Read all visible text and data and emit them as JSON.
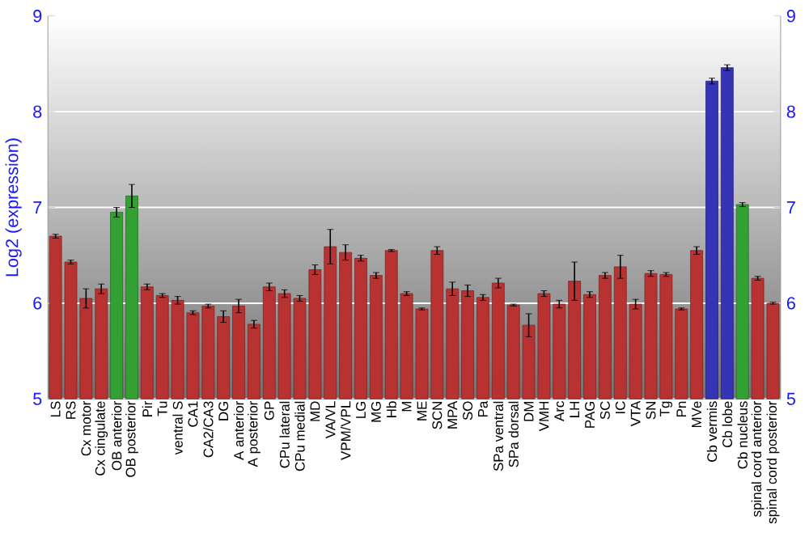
{
  "chart_data": {
    "type": "bar",
    "ylabel": "Log2 (expression)",
    "categories": [
      "LS",
      "RS",
      "Cx motor",
      "Cx cingulate",
      "OB anterior",
      "OB posterior",
      "Pir",
      "Tu",
      "ventral S",
      "CA1",
      "CA2/CA3",
      "DG",
      "A anterior",
      "A posterior",
      "GP",
      "CPu lateral",
      "CPu medial",
      "MD",
      "VA/VL",
      "VPM/VPL",
      "LG",
      "MG",
      "Hb",
      "M",
      "ME",
      "SCN",
      "MPA",
      "SO",
      "Pa",
      "SPa ventral",
      "SPa dorsal",
      "DM",
      "VMH",
      "Arc",
      "LH",
      "PAG",
      "SC",
      "IC",
      "VTA",
      "SN",
      "Tg",
      "Pn",
      "MVe",
      "Cb vermis",
      "Cb lobe",
      "Cb nucleus",
      "spinal cord anterior",
      "spinal cord posterior"
    ],
    "values": [
      6.7,
      6.43,
      6.05,
      6.15,
      6.95,
      7.12,
      6.17,
      6.08,
      6.03,
      5.9,
      5.97,
      5.86,
      5.97,
      5.78,
      6.17,
      6.1,
      6.05,
      6.35,
      6.59,
      6.53,
      6.47,
      6.29,
      6.55,
      6.1,
      5.94,
      6.55,
      6.15,
      6.13,
      6.06,
      6.21,
      5.98,
      5.77,
      6.1,
      5.99,
      6.23,
      6.09,
      6.29,
      6.38,
      5.99,
      6.31,
      6.3,
      5.94,
      6.55,
      8.32,
      8.46,
      7.03,
      6.26,
      6.0
    ],
    "errors": [
      0.02,
      0.02,
      0.1,
      0.05,
      0.05,
      0.12,
      0.03,
      0.02,
      0.04,
      0.02,
      0.02,
      0.06,
      0.07,
      0.04,
      0.04,
      0.04,
      0.03,
      0.05,
      0.18,
      0.08,
      0.03,
      0.03,
      0.01,
      0.02,
      0.01,
      0.04,
      0.07,
      0.06,
      0.03,
      0.05,
      0.01,
      0.12,
      0.03,
      0.04,
      0.2,
      0.03,
      0.03,
      0.12,
      0.05,
      0.03,
      0.02,
      0.01,
      0.04,
      0.03,
      0.03,
      0.02,
      0.02,
      0.01
    ],
    "colors": [
      "#b83232",
      "#b83232",
      "#b83232",
      "#b83232",
      "#33a033",
      "#33a033",
      "#b83232",
      "#b83232",
      "#b83232",
      "#b83232",
      "#b83232",
      "#b83232",
      "#b83232",
      "#b83232",
      "#b83232",
      "#b83232",
      "#b83232",
      "#b83232",
      "#b83232",
      "#b83232",
      "#b83232",
      "#b83232",
      "#b83232",
      "#b83232",
      "#b83232",
      "#b83232",
      "#b83232",
      "#b83232",
      "#b83232",
      "#b83232",
      "#b83232",
      "#b83232",
      "#b83232",
      "#b83232",
      "#b83232",
      "#b83232",
      "#b83232",
      "#b83232",
      "#b83232",
      "#b83232",
      "#b83232",
      "#b83232",
      "#b83232",
      "#3434b4",
      "#3434b4",
      "#33a033",
      "#b83232",
      "#b83232"
    ],
    "ylim": [
      5,
      9
    ],
    "yticks": [
      5,
      6,
      7,
      8,
      9
    ],
    "y2lim": [
      5,
      9
    ],
    "y2ticks": [
      5,
      6,
      7,
      8,
      9
    ],
    "grid": "y"
  }
}
